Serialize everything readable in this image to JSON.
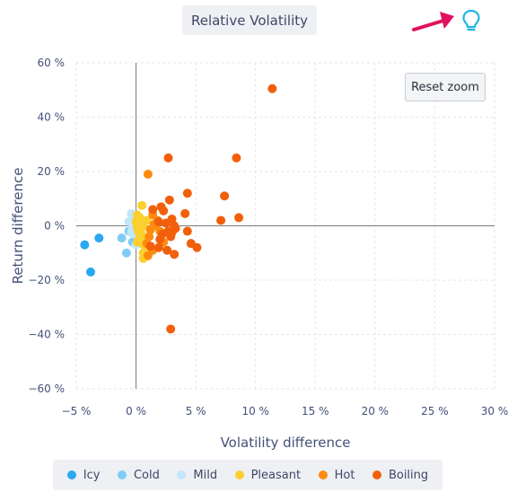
{
  "header": {
    "title": "Relative Volatility",
    "hint_icon": "lightbulb-icon",
    "hint_arrow_color": "#e0115f",
    "hint_icon_color": "#1fb6e0"
  },
  "toolbar": {
    "reset_label": "Reset zoom"
  },
  "chart_data": {
    "type": "scatter",
    "title": "Relative Volatility",
    "xlabel": "Volatility difference",
    "ylabel": "Return difference",
    "xlim": [
      -5,
      30
    ],
    "ylim": [
      -60,
      60
    ],
    "x_ticks": [
      -5,
      0,
      5,
      10,
      15,
      20,
      25,
      30
    ],
    "y_ticks": [
      -60,
      -40,
      -20,
      0,
      20,
      40,
      60
    ],
    "x_tick_labels": [
      "−5 %",
      "0 %",
      "5 %",
      "10 %",
      "15 %",
      "20 %",
      "25 %",
      "30 %"
    ],
    "y_tick_labels": [
      "−60 %",
      "−40 %",
      "−20 %",
      "0 %",
      "20 %",
      "40 %",
      "60 %"
    ],
    "grid": true,
    "legend_position": "bottom",
    "series": [
      {
        "name": "Icy",
        "color": "#2aa8f0",
        "points": [
          [
            -4.3,
            -7
          ],
          [
            -3.1,
            -4.5
          ],
          [
            -3.8,
            -17
          ]
        ]
      },
      {
        "name": "Cold",
        "color": "#7fcdf5",
        "points": [
          [
            -1.2,
            -4.5
          ],
          [
            -0.6,
            -2
          ],
          [
            -0.8,
            -10
          ],
          [
            -0.3,
            -6
          ]
        ]
      },
      {
        "name": "Mild",
        "color": "#c2e6fa",
        "points": [
          [
            -0.4,
            4.5
          ],
          [
            -0.2,
            2.5
          ],
          [
            -0.6,
            1.5
          ],
          [
            -0.1,
            0.5
          ],
          [
            -0.3,
            -1
          ],
          [
            -0.2,
            -3
          ],
          [
            0.0,
            -7
          ],
          [
            -0.4,
            -2.5
          ],
          [
            0.1,
            3.5
          ]
        ]
      },
      {
        "name": "Pleasant",
        "color": "#fbcf2e",
        "points": [
          [
            0.5,
            7.5
          ],
          [
            0.1,
            4
          ],
          [
            0.3,
            3
          ],
          [
            0.0,
            1.5
          ],
          [
            0.2,
            0.5
          ],
          [
            0.6,
            0
          ],
          [
            0.1,
            -0.5
          ],
          [
            0.4,
            -1.5
          ],
          [
            0.2,
            -2
          ],
          [
            0.5,
            -3.5
          ],
          [
            0.3,
            -4.5
          ],
          [
            0.7,
            -5
          ],
          [
            0.1,
            -6
          ],
          [
            0.5,
            -6.5
          ],
          [
            0.8,
            -8
          ],
          [
            0.6,
            -10
          ],
          [
            0.6,
            -12
          ],
          [
            0.9,
            2
          ],
          [
            1.0,
            -9
          ]
        ]
      },
      {
        "name": "Hot",
        "color": "#fd8b0f",
        "points": [
          [
            1.0,
            19
          ],
          [
            1.5,
            0.5
          ],
          [
            1.2,
            -1.5
          ],
          [
            1.1,
            -4
          ],
          [
            0.9,
            -6.5
          ],
          [
            1.4,
            -9
          ],
          [
            1.0,
            -11
          ],
          [
            1.4,
            4
          ],
          [
            1.8,
            2
          ],
          [
            2.0,
            -2
          ],
          [
            2.3,
            -6
          ],
          [
            1.6,
            0
          ]
        ]
      },
      {
        "name": "Boiling",
        "color": "#f25f0a",
        "points": [
          [
            11.4,
            50.5
          ],
          [
            2.7,
            25
          ],
          [
            8.4,
            25
          ],
          [
            7.4,
            11
          ],
          [
            4.3,
            12
          ],
          [
            2.8,
            9.5
          ],
          [
            2.1,
            7
          ],
          [
            2.3,
            5.5
          ],
          [
            4.1,
            4.5
          ],
          [
            8.6,
            3
          ],
          [
            7.1,
            2
          ],
          [
            3.0,
            2.5
          ],
          [
            2.5,
            1
          ],
          [
            1.9,
            1.5
          ],
          [
            3.2,
            0
          ],
          [
            3.3,
            -1
          ],
          [
            2.7,
            -2
          ],
          [
            2.2,
            -3
          ],
          [
            4.3,
            -2
          ],
          [
            2.9,
            -4
          ],
          [
            2.0,
            -5
          ],
          [
            4.6,
            -6.5
          ],
          [
            1.9,
            -8
          ],
          [
            5.1,
            -8
          ],
          [
            2.6,
            -9
          ],
          [
            3.2,
            -10.5
          ],
          [
            1.2,
            -7.5
          ],
          [
            3.0,
            -2.5
          ],
          [
            2.9,
            -38
          ],
          [
            1.4,
            6
          ]
        ]
      }
    ]
  }
}
